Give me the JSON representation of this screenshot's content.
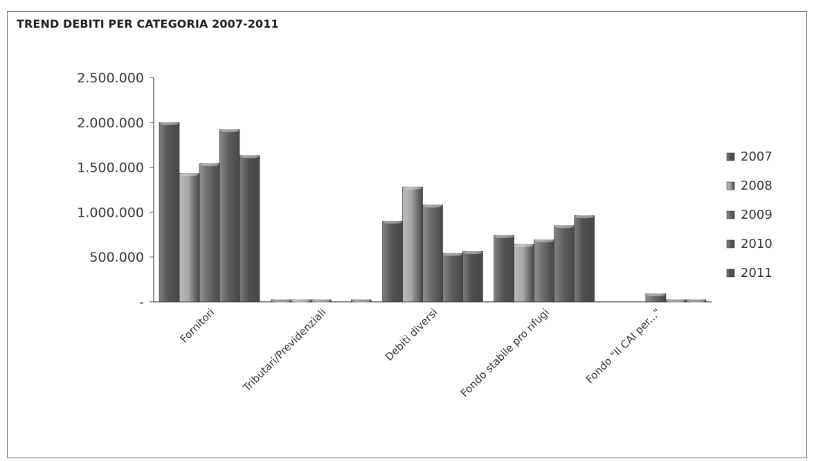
{
  "chart_data": {
    "type": "bar",
    "title": "TREND DEBITI PER CATEGORIA 2007-2011",
    "categories": [
      "Fornitori",
      "Tributari/Previdenziali",
      "Debiti diversi",
      "Fondo stabile pro rifugi",
      "Fondo \"Il CAI per...\""
    ],
    "series": [
      {
        "name": "2007",
        "values": [
          2000000,
          20000,
          900000,
          740000,
          0
        ],
        "color": "#555555"
      },
      {
        "name": "2008",
        "values": [
          1430000,
          20000,
          1280000,
          640000,
          0
        ],
        "color": "#a6a6a6"
      },
      {
        "name": "2009",
        "values": [
          1540000,
          20000,
          1080000,
          690000,
          90000
        ],
        "color": "#6b6b6b"
      },
      {
        "name": "2010",
        "values": [
          1920000,
          0,
          540000,
          850000,
          15000
        ],
        "color": "#5e5e5e"
      },
      {
        "name": "2011",
        "values": [
          1630000,
          20000,
          560000,
          960000,
          15000
        ],
        "color": "#4f4f4f"
      }
    ],
    "yticks": [
      "-",
      "500.000",
      "1.000.000",
      "1.500.000",
      "2.000.000",
      "2.500.000"
    ],
    "ylim": [
      0,
      2500000
    ],
    "grid": false,
    "legend_position": "right",
    "xlabel": "",
    "ylabel": ""
  }
}
